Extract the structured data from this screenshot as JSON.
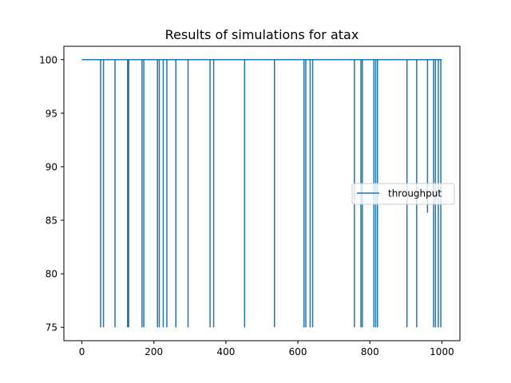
{
  "chart_data": {
    "type": "line",
    "title": "Results of simulations for atax",
    "xlabel": "",
    "ylabel": "",
    "xlim": [
      -50,
      1050
    ],
    "ylim": [
      73.75,
      101.25
    ],
    "x_ticks": [
      0,
      200,
      400,
      600,
      800,
      1000
    ],
    "y_ticks": [
      75,
      80,
      85,
      90,
      95,
      100
    ],
    "x_tick_labels": [
      "0",
      "200",
      "400",
      "600",
      "800",
      "1000"
    ],
    "y_tick_labels": [
      "75",
      "80",
      "85",
      "90",
      "95",
      "100"
    ],
    "legend_position": "center-right",
    "grid": false,
    "series": [
      {
        "name": "throughput",
        "color": "#1f77b4",
        "x_start": 0,
        "x_end": 1000,
        "baseline": 100,
        "dips": [
          {
            "x": 52,
            "y": 75
          },
          {
            "x": 60,
            "y": 75
          },
          {
            "x": 92,
            "y": 75
          },
          {
            "x": 127,
            "y": 75
          },
          {
            "x": 130,
            "y": 75
          },
          {
            "x": 167,
            "y": 75
          },
          {
            "x": 172,
            "y": 75
          },
          {
            "x": 210,
            "y": 75
          },
          {
            "x": 215,
            "y": 75
          },
          {
            "x": 226,
            "y": 75
          },
          {
            "x": 236,
            "y": 75
          },
          {
            "x": 261,
            "y": 75
          },
          {
            "x": 295,
            "y": 75
          },
          {
            "x": 356,
            "y": 75
          },
          {
            "x": 366,
            "y": 75
          },
          {
            "x": 452,
            "y": 75
          },
          {
            "x": 535,
            "y": 75
          },
          {
            "x": 617,
            "y": 75
          },
          {
            "x": 622,
            "y": 75
          },
          {
            "x": 634,
            "y": 75
          },
          {
            "x": 641,
            "y": 75
          },
          {
            "x": 757,
            "y": 75
          },
          {
            "x": 775,
            "y": 75
          },
          {
            "x": 779,
            "y": 75
          },
          {
            "x": 811,
            "y": 75
          },
          {
            "x": 816,
            "y": 75
          },
          {
            "x": 821,
            "y": 75
          },
          {
            "x": 903,
            "y": 75
          },
          {
            "x": 930,
            "y": 75
          },
          {
            "x": 960,
            "y": 85.7
          },
          {
            "x": 977,
            "y": 75
          },
          {
            "x": 982,
            "y": 75
          },
          {
            "x": 990,
            "y": 75
          },
          {
            "x": 997,
            "y": 75
          }
        ]
      }
    ]
  }
}
